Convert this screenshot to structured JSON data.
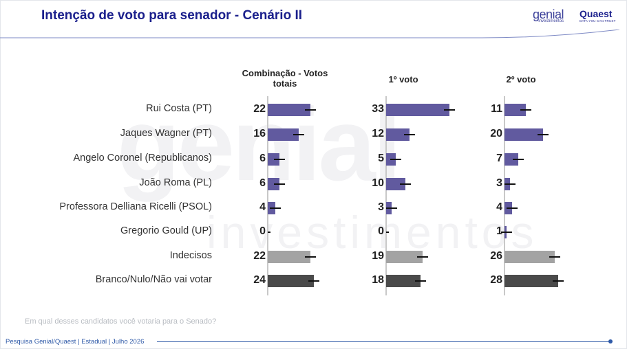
{
  "title": "Intenção de voto para senador - Cenário II",
  "logos": {
    "genial": "genial",
    "genial_sub": "investimentos",
    "quaest": "Quaest",
    "quaest_sub": "DATA YOU CAN TRUST"
  },
  "watermark": {
    "main": "genial",
    "sub": "investimentos"
  },
  "colors": {
    "candidate": "#615a9f",
    "undecided": "#a3a3a3",
    "blank": "#4a4a4a",
    "title": "#1a1f8c"
  },
  "chart_data": {
    "type": "bar",
    "categories": [
      "Rui Costa (PT)",
      "Jaques Wagner (PT)",
      "Angelo Coronel (Republicanos)",
      "João Roma (PL)",
      "Professora Delliana Ricelli (PSOL)",
      "Gregorio Gould (UP)",
      "Indecisos",
      "Branco/Nulo/Não vai votar"
    ],
    "panels": [
      {
        "title": "Combinação - Votos totais",
        "values": [
          22,
          16,
          6,
          6,
          4,
          0,
          22,
          24
        ]
      },
      {
        "title": "1º voto",
        "values": [
          33,
          12,
          5,
          10,
          3,
          0,
          19,
          18
        ]
      },
      {
        "title": "2º voto",
        "values": [
          11,
          20,
          7,
          3,
          4,
          1,
          26,
          28
        ]
      }
    ],
    "error_bars": true
  },
  "question": "Em qual desses candidatos você votaria para o Senado?",
  "footer": "Pesquisa Genial/Quaest | Estadual | Julho 2026"
}
